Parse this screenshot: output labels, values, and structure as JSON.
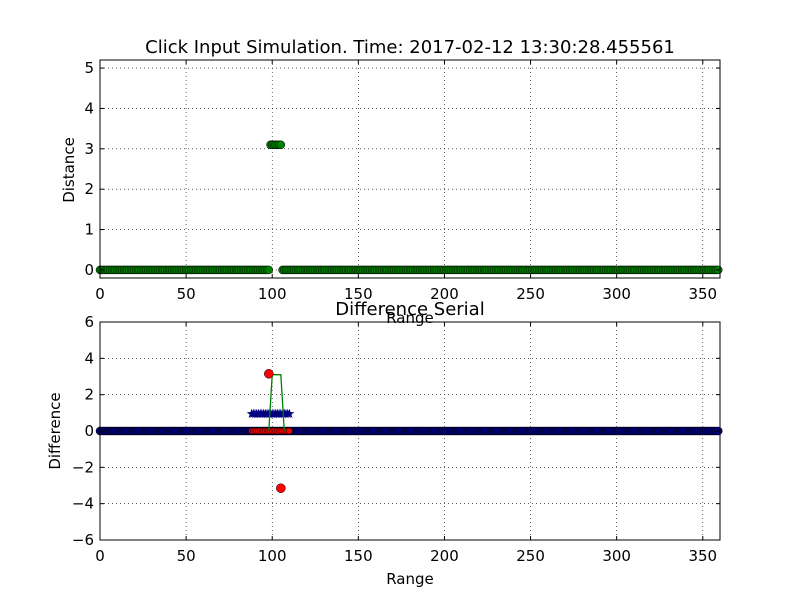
{
  "chart_data": [
    {
      "type": "scatter",
      "title": "Click Input Simulation. Time: 2017-02-12 13:30:28.455561",
      "xlabel": "Range",
      "ylabel": "Distance",
      "xlim": [
        0,
        360
      ],
      "ylim": [
        -0.2,
        5.2
      ],
      "xticks": [
        "0",
        "50",
        "100",
        "150",
        "200",
        "250",
        "300",
        "350"
      ],
      "yticks": [
        "0",
        "1",
        "2",
        "3",
        "4",
        "5"
      ],
      "grid": true,
      "series": [
        {
          "marker": "circle",
          "color": "#008000",
          "points": "distance: 0 for range 0-98 and 106-359; about 3.1 for range 99-105"
        }
      ]
    },
    {
      "type": "scatter",
      "title": "Difference Serial",
      "xlabel": "Range",
      "ylabel": "Difference",
      "xlim": [
        0,
        360
      ],
      "ylim": [
        -6,
        6
      ],
      "xticks": [
        "0",
        "50",
        "100",
        "150",
        "200",
        "250",
        "300",
        "350"
      ],
      "yticks": [
        "−6",
        "−4",
        "−2",
        "0",
        "2",
        "4",
        "6"
      ],
      "grid": true,
      "series": [
        {
          "marker": "circle",
          "color": "#ff0000",
          "x": [
            98,
            105
          ],
          "y": [
            3.15,
            -3.15
          ]
        },
        {
          "marker": "circle",
          "color": "#000080",
          "x_range": [
            0,
            359
          ],
          "y": 0
        },
        {
          "marker": "star",
          "color": "#000080",
          "x_range": [
            88,
            110
          ],
          "y": 1
        },
        {
          "marker": "circle",
          "color": "#ff0000",
          "x_range": [
            88,
            110
          ],
          "y": 0
        },
        {
          "marker": "line",
          "color": "#008000",
          "x": [
            98,
            100,
            101,
            102,
            103,
            104,
            105,
            107
          ],
          "y": [
            0,
            3.1,
            3.1,
            3.1,
            3.1,
            3.1,
            3.1,
            0
          ]
        }
      ]
    }
  ]
}
